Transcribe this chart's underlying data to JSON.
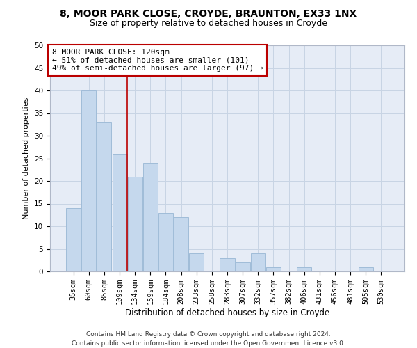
{
  "title_line1": "8, MOOR PARK CLOSE, CROYDE, BRAUNTON, EX33 1NX",
  "title_line2": "Size of property relative to detached houses in Croyde",
  "xlabel": "Distribution of detached houses by size in Croyde",
  "ylabel": "Number of detached properties",
  "categories": [
    "35sqm",
    "60sqm",
    "85sqm",
    "109sqm",
    "134sqm",
    "159sqm",
    "184sqm",
    "208sqm",
    "233sqm",
    "258sqm",
    "283sqm",
    "307sqm",
    "332sqm",
    "357sqm",
    "382sqm",
    "406sqm",
    "431sqm",
    "456sqm",
    "481sqm",
    "505sqm",
    "530sqm"
  ],
  "values": [
    14,
    40,
    33,
    26,
    21,
    24,
    13,
    12,
    4,
    0,
    3,
    2,
    4,
    1,
    0,
    1,
    0,
    0,
    0,
    1,
    0
  ],
  "bar_color": "#c5d8ed",
  "bar_edgecolor": "#a0bcd8",
  "bar_linewidth": 0.7,
  "grid_color": "#c8d4e4",
  "bg_color": "#e6ecf6",
  "annotation_box_text": "8 MOOR PARK CLOSE: 120sqm\n← 51% of detached houses are smaller (101)\n49% of semi-detached houses are larger (97) →",
  "annotation_box_color": "#bb0000",
  "vline_x": 3.5,
  "vline_color": "#bb0000",
  "vline_linewidth": 1.2,
  "footnote": "Contains HM Land Registry data © Crown copyright and database right 2024.\nContains public sector information licensed under the Open Government Licence v3.0.",
  "ylim": [
    0,
    50
  ],
  "yticks": [
    0,
    5,
    10,
    15,
    20,
    25,
    30,
    35,
    40,
    45,
    50
  ],
  "title_fontsize": 10,
  "subtitle_fontsize": 9,
  "xlabel_fontsize": 8.5,
  "ylabel_fontsize": 8,
  "tick_fontsize": 7.5,
  "annotation_fontsize": 8,
  "footnote_fontsize": 6.5
}
